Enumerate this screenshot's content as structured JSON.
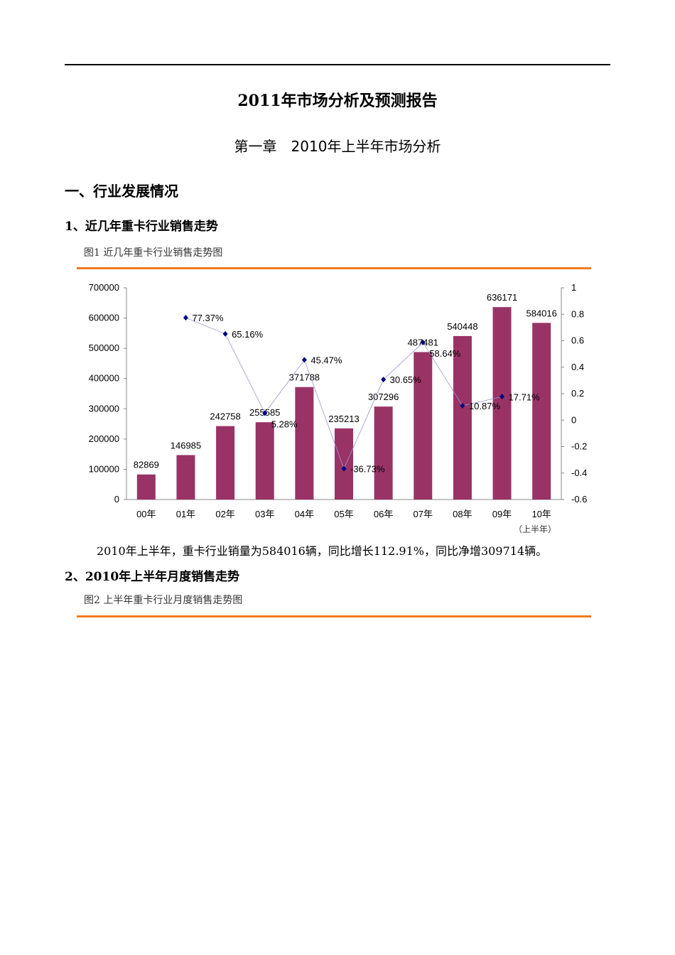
{
  "title": "2011年市场分析及预测报告",
  "chapter": "第一章　2010年上半年市场分析",
  "section1": "一、行业发展情况",
  "sub1": "1、近几年重卡行业销售走势",
  "fig1_caption": "图1 近几年重卡行业销售走势图",
  "paragraph": "2010年上半年，重卡行业销量为584016辆，同比增长112.91%，同比净增309714辆。",
  "sub2": "2、2010年上半年月度销售走势",
  "fig2_caption": "图2 上半年重卡行业月度销售走势图",
  "accent_color": "#f07b1e",
  "chart_data": {
    "type": "bar+line",
    "categories": [
      "00年",
      "01年",
      "02年",
      "03年",
      "04年",
      "05年",
      "06年",
      "07年",
      "08年",
      "09年",
      "10年"
    ],
    "category_note": "（上半年）",
    "bar_color": "#993366",
    "line_color": "#000080",
    "bars": [
      82869,
      146985,
      242758,
      255585,
      371788,
      235213,
      307296,
      487481,
      540448,
      636171,
      584016
    ],
    "bar_labels": [
      "82869",
      "146985",
      "242758",
      "255585",
      "371788",
      "235213",
      "307296",
      "487481",
      "540448",
      "636171",
      "584016"
    ],
    "growth": [
      null,
      0.7737,
      0.6516,
      0.0528,
      0.4547,
      -0.3673,
      0.3065,
      0.5864,
      0.1087,
      0.1771,
      null
    ],
    "growth_labels": [
      "",
      "77.37%",
      "65.16%",
      "5.28%",
      "45.47%",
      "-36.73%",
      "30.65%",
      "58.64%",
      "10.87%",
      "17.71%",
      ""
    ],
    "y_left": {
      "range": [
        0,
        700000
      ],
      "ticks": [
        "0",
        "100000",
        "200000",
        "300000",
        "400000",
        "500000",
        "600000",
        "700000"
      ]
    },
    "y_right": {
      "range": [
        -0.6,
        1
      ],
      "ticks": [
        "-0.6",
        "-0.4",
        "-0.2",
        "0",
        "0.2",
        "0.4",
        "0.6",
        "0.8",
        "1"
      ]
    },
    "grid": false,
    "legend": "none"
  }
}
